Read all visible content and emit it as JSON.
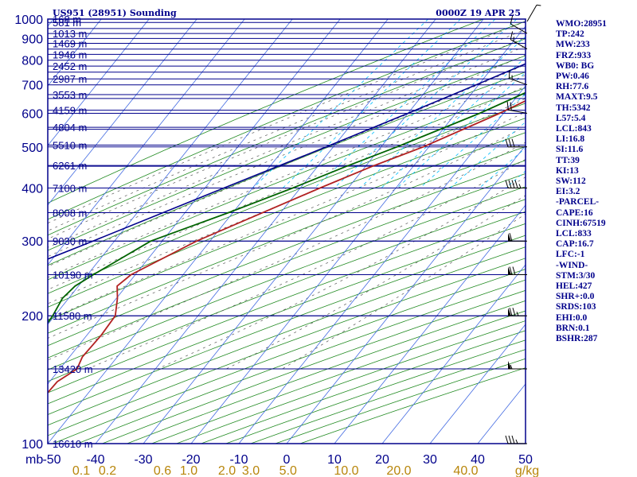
{
  "header": {
    "station_title": "US951 (28951) Sounding",
    "time_title": "0000Z 19 APR 25"
  },
  "stats": [
    "WMO:28951",
    "TP:242",
    "MW:233",
    "FRZ:933",
    "WB0: BG",
    "PW:0.46",
    "RH:77.6",
    "MAXT:9.5",
    "TH:5342",
    "L57:5.4",
    "LCL:843",
    "LI:16.8",
    "SI:11.6",
    "TT:39",
    "KI:13",
    "SW:112",
    "EI:3.2",
    "-PARCEL-",
    "CAPE:16",
    "CINH:67519",
    "LCL:833",
    "CAP:16.7",
    "LFC:-1",
    "-WIND-",
    "STM:3/30",
    "HEL:427",
    "SHR+:0.0",
    "SRDS:103",
    "EHI:0.0",
    "BRN:0.1",
    "BSHR:287"
  ],
  "colors": {
    "isobar": "#00008b",
    "isotherm": "#4169e1",
    "dry_adiabat": "#228b22",
    "moist_adiabat": "#555555",
    "mixing_ratio": "#00bfff",
    "temperature": "#b22222",
    "dewpoint": "#006400",
    "parcel": "#00008b",
    "border": "#00008b",
    "mixing_ratio_labels": "#b8860b",
    "wind_barbs": "#000000"
  },
  "chart_data": {
    "type": "skew-t",
    "title": "US951 (28951) Sounding",
    "x_unit_label": "mb",
    "xlim": [
      -50,
      50
    ],
    "pressure_range_mb": [
      1000,
      100
    ],
    "pressure_ticks": [
      100,
      200,
      300,
      400,
      500,
      600,
      700,
      800,
      900,
      1000
    ],
    "temperature_ticks": [
      -50,
      -40,
      -30,
      -20,
      -10,
      0,
      10,
      20,
      30,
      40,
      50
    ],
    "mixing_ratio_unit": "g/kg",
    "mixing_ratio_ticks": [
      {
        "label": "0.1",
        "at": -43
      },
      {
        "label": "0.2",
        "at": -37.5
      },
      {
        "label": "0.6",
        "at": -26
      },
      {
        "label": "1.0",
        "at": -20.5
      },
      {
        "label": "2.0",
        "at": -12.5
      },
      {
        "label": "3.0",
        "at": -7.5
      },
      {
        "label": "5.0",
        "at": 0.3
      },
      {
        "label": "10.0",
        "at": 12.5
      },
      {
        "label": "20.0",
        "at": 23.5
      },
      {
        "label": "40.0",
        "at": 37.5
      }
    ],
    "height_labels": [
      {
        "p": 1000,
        "label": "168 m"
      },
      {
        "p": 982,
        "label": "581 m"
      },
      {
        "p": 925,
        "label": "1013 m"
      },
      {
        "p": 877,
        "label": "1469 m"
      },
      {
        "p": 826,
        "label": "1946 m"
      },
      {
        "p": 775,
        "label": "2452 m"
      },
      {
        "p": 723,
        "label": "2987 m"
      },
      {
        "p": 664,
        "label": "3553 m"
      },
      {
        "p": 610,
        "label": "4159 m"
      },
      {
        "p": 556,
        "label": "4804 m"
      },
      {
        "p": 505,
        "label": "5510 m"
      },
      {
        "p": 452,
        "label": "6261 m"
      },
      {
        "p": 400,
        "label": "7100 m"
      },
      {
        "p": 350,
        "label": "8008 m"
      },
      {
        "p": 300,
        "label": "9030 m"
      },
      {
        "p": 250,
        "label": "10190 m"
      },
      {
        "p": 200,
        "label": "11580 m"
      },
      {
        "p": 150,
        "label": "13420 m"
      },
      {
        "p": 100,
        "label": "16610 m"
      }
    ],
    "temperature": [
      {
        "p": 987,
        "t": 3.5
      },
      {
        "p": 965,
        "t": 2.7
      },
      {
        "p": 950,
        "t": 3.2
      },
      {
        "p": 925,
        "t": 3.4
      },
      {
        "p": 900,
        "t": 4.0
      },
      {
        "p": 850,
        "t": 3.6
      },
      {
        "p": 800,
        "t": 1.8
      },
      {
        "p": 700,
        "t": -3.2
      },
      {
        "p": 600,
        "t": -10.8
      },
      {
        "p": 500,
        "t": -21.2
      },
      {
        "p": 450,
        "t": -28.6
      },
      {
        "p": 400,
        "t": -35.9
      },
      {
        "p": 300,
        "t": -52.8
      },
      {
        "p": 250,
        "t": -60.9
      },
      {
        "p": 235,
        "t": -61.9
      },
      {
        "p": 220,
        "t": -59.8
      },
      {
        "p": 200,
        "t": -57.3
      },
      {
        "p": 180,
        "t": -57.0
      },
      {
        "p": 160,
        "t": -57.3
      },
      {
        "p": 150,
        "t": -56.4
      },
      {
        "p": 140,
        "t": -58.4
      },
      {
        "p": 130,
        "t": -58.6
      },
      {
        "p": 115,
        "t": -58.4
      },
      {
        "p": 100,
        "t": -58.8
      }
    ],
    "dewpoint": [
      {
        "p": 987,
        "t": -4.5
      },
      {
        "p": 950,
        "t": -0.8
      },
      {
        "p": 925,
        "t": -1.2
      },
      {
        "p": 900,
        "t": 0.5
      },
      {
        "p": 850,
        "t": -0.3
      },
      {
        "p": 800,
        "t": -2.2
      },
      {
        "p": 700,
        "t": -6.5
      },
      {
        "p": 600,
        "t": -15.0
      },
      {
        "p": 500,
        "t": -26.7
      },
      {
        "p": 450,
        "t": -34.0
      },
      {
        "p": 400,
        "t": -41.6
      },
      {
        "p": 350,
        "t": -50.9
      },
      {
        "p": 300,
        "t": -62.4
      },
      {
        "p": 250,
        "t": -68.8
      },
      {
        "p": 235,
        "t": -70.7
      },
      {
        "p": 220,
        "t": -71.3
      },
      {
        "p": 200,
        "t": -70.4
      },
      {
        "p": 180,
        "t": -70.0
      },
      {
        "p": 160,
        "t": -69.4
      },
      {
        "p": 150,
        "t": -72.4
      },
      {
        "p": 125,
        "t": -75.4
      },
      {
        "p": 100,
        "t": -78.6
      }
    ],
    "parcel": [
      {
        "p": 987,
        "t": 5.5
      },
      {
        "p": 925,
        "t": -2.0
      },
      {
        "p": 900,
        "t": -4.9
      },
      {
        "p": 850,
        "t": -9.0
      },
      {
        "p": 800,
        "t": -12.5
      },
      {
        "p": 700,
        "t": -20.5
      },
      {
        "p": 600,
        "t": -30.0
      },
      {
        "p": 500,
        "t": -41.5
      },
      {
        "p": 400,
        "t": -56.0
      },
      {
        "p": 300,
        "t": -74.5
      },
      {
        "p": 250,
        "t": -86.5
      },
      {
        "p": 200,
        "t": -100.5
      },
      {
        "p": 150,
        "t": -118.5
      },
      {
        "p": 125,
        "t": -129.5
      }
    ],
    "wind_barbs": [
      {
        "p": 987,
        "dir": 30,
        "spd": 5
      },
      {
        "p": 925,
        "dir": 300,
        "spd": 10
      },
      {
        "p": 850,
        "dir": 300,
        "spd": 15
      },
      {
        "p": 700,
        "dir": 290,
        "spd": 15
      },
      {
        "p": 600,
        "dir": 280,
        "spd": 20
      },
      {
        "p": 500,
        "dir": 270,
        "spd": 30
      },
      {
        "p": 400,
        "dir": 270,
        "spd": 45
      },
      {
        "p": 300,
        "dir": 270,
        "spd": 60
      },
      {
        "p": 250,
        "dir": 270,
        "spd": 70
      },
      {
        "p": 200,
        "dir": 270,
        "spd": 75
      },
      {
        "p": 150,
        "dir": 270,
        "spd": 55
      },
      {
        "p": 100,
        "dir": 270,
        "spd": 35
      }
    ]
  }
}
